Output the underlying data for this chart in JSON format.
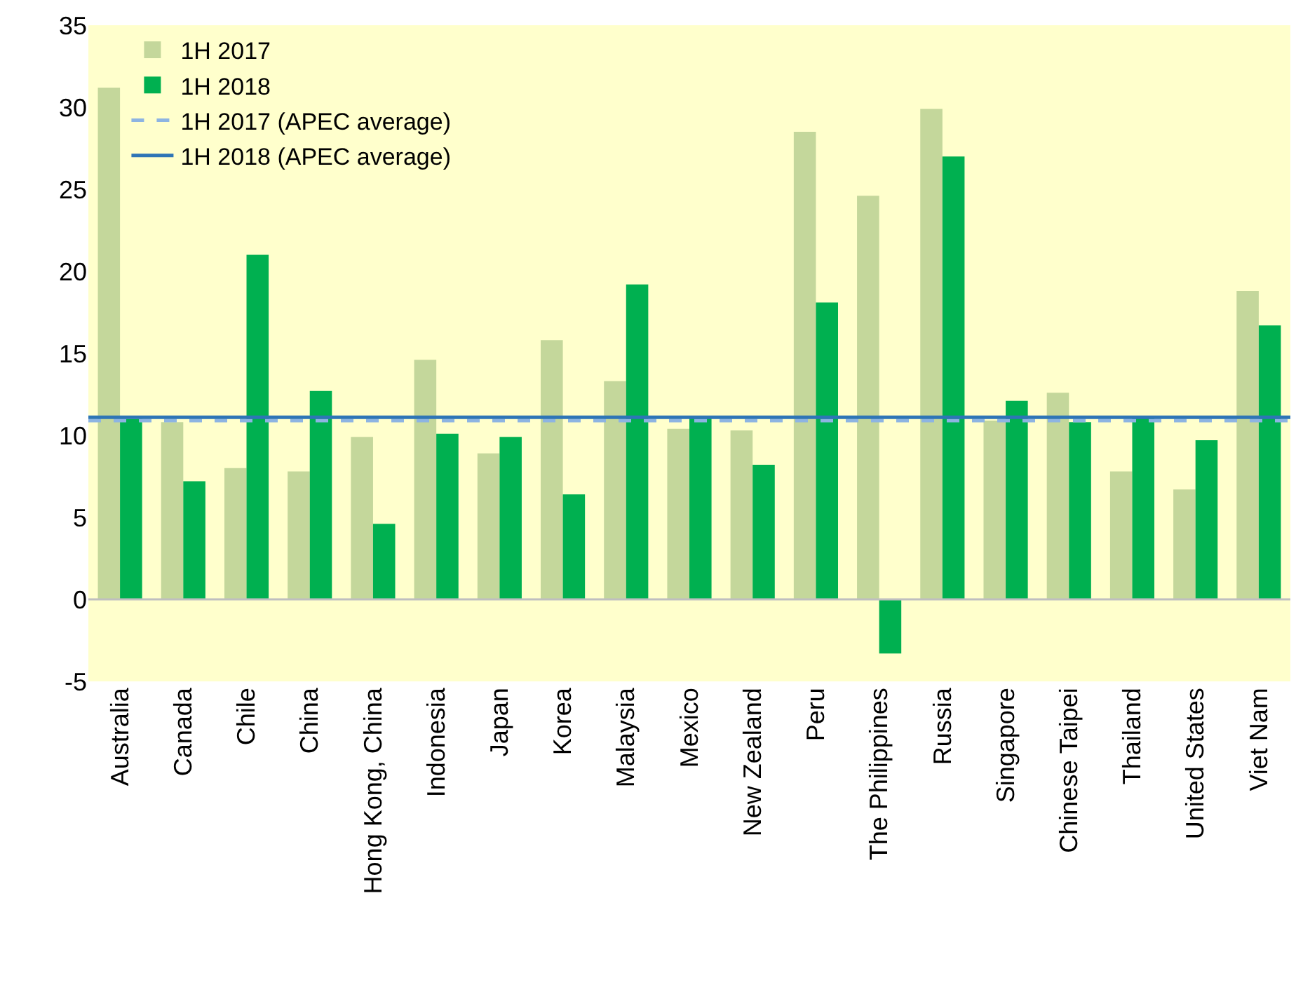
{
  "chart_data": {
    "type": "bar",
    "categories": [
      "Australia",
      "Canada",
      "Chile",
      "China",
      "Hong Kong, China",
      "Indonesia",
      "Japan",
      "Korea",
      "Malaysia",
      "Mexico",
      "New Zealand",
      "Peru",
      "The Philippines",
      "Russia",
      "Singapore",
      "Chinese Taipei",
      "Thailand",
      "United States",
      "Viet Nam"
    ],
    "series": [
      {
        "name": "1H 2017",
        "color": "#c4d79b",
        "values": [
          31.2,
          10.8,
          8.0,
          7.8,
          9.9,
          14.6,
          8.9,
          15.8,
          13.3,
          10.4,
          10.3,
          28.5,
          24.6,
          29.9,
          10.9,
          12.6,
          7.8,
          6.7,
          18.8
        ]
      },
      {
        "name": "1H 2018",
        "color": "#00b050",
        "values": [
          11.0,
          7.2,
          21.0,
          12.7,
          4.6,
          10.1,
          9.9,
          6.4,
          19.2,
          11.1,
          8.2,
          18.1,
          -3.3,
          27.0,
          12.1,
          10.8,
          11.1,
          9.7,
          16.7
        ]
      }
    ],
    "ref_lines": [
      {
        "axis": "y",
        "value": 0,
        "color": "#bfbfbf",
        "line_style": "solid"
      },
      {
        "axis": "y",
        "value": 10.9,
        "label": "1H 2017 (APEC average)",
        "color": "#8db4e2",
        "line_style": "dashed"
      },
      {
        "axis": "y",
        "value": 11.1,
        "label": "1H 2018 (APEC average)",
        "color": "#2e75b6",
        "line_style": "solid"
      }
    ],
    "ylim": [
      -5,
      35
    ],
    "yticks": [
      -5,
      0,
      5,
      10,
      15,
      20,
      25,
      30,
      35
    ],
    "grid": false,
    "legend": "top left"
  }
}
